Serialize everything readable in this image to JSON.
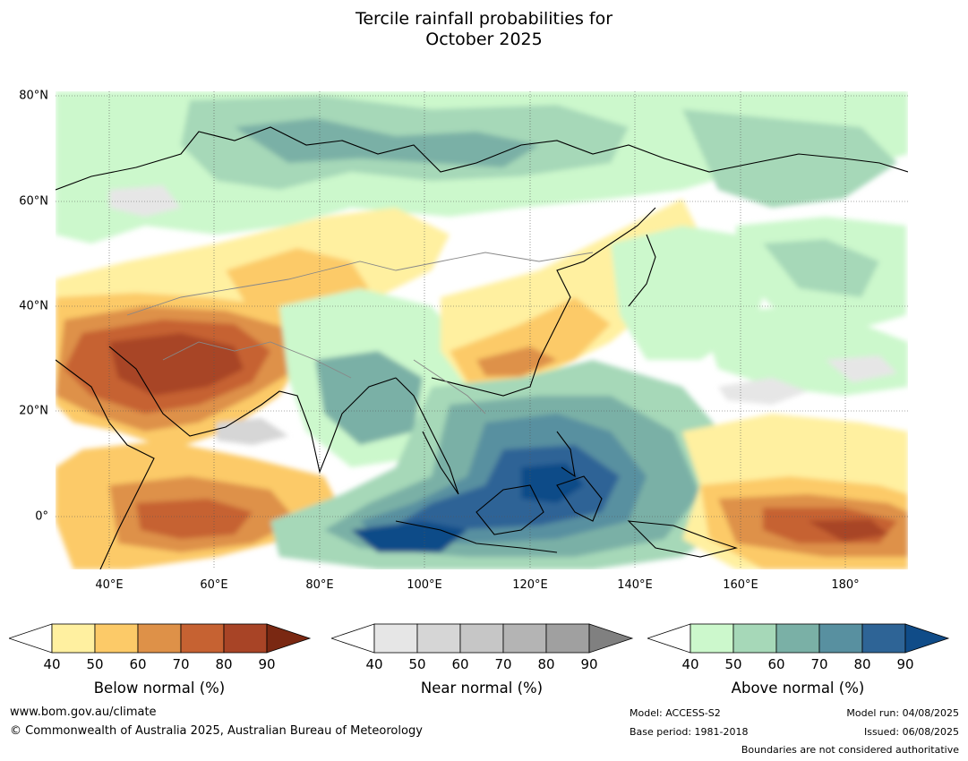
{
  "title_line1": "Tercile rainfall probabilities for",
  "title_line2": "October 2025",
  "lat_labels": [
    "80°N",
    "60°N",
    "40°N",
    "20°N",
    "0°"
  ],
  "lon_labels": [
    "40°E",
    "60°E",
    "80°E",
    "100°E",
    "120°E",
    "140°E",
    "160°E",
    "180°"
  ],
  "colorbars": [
    {
      "title": "Below normal (%)",
      "ticks": [
        "40",
        "50",
        "60",
        "70",
        "80",
        "90"
      ],
      "colors": [
        "#fff0a0",
        "#fcca68",
        "#de9148",
        "#c66232",
        "#a84426",
        "#7a2812"
      ]
    },
    {
      "title": "Near normal (%)",
      "ticks": [
        "40",
        "50",
        "60",
        "70",
        "80",
        "90"
      ],
      "colors": [
        "#e6e6e6",
        "#d6d6d6",
        "#c6c6c6",
        "#b4b4b4",
        "#a0a0a0",
        "#808080"
      ]
    },
    {
      "title": "Above normal (%)",
      "ticks": [
        "40",
        "50",
        "60",
        "70",
        "80",
        "90"
      ],
      "colors": [
        "#ccf8cc",
        "#a6d8b8",
        "#7ab0a6",
        "#5890a0",
        "#2e6496",
        "#104c88"
      ]
    }
  ],
  "footer": {
    "website": "www.bom.gov.au/climate",
    "copyright": "© Commonwealth of Australia 2025, Australian Bureau of Meteorology",
    "model": "Model: ACCESS-S2",
    "base_period": "Base period: 1981-2018",
    "model_run": "Model run: 04/08/2025",
    "issued": "Issued: 06/08/2025",
    "disclaimer": "Boundaries are not considered authoritative"
  }
}
